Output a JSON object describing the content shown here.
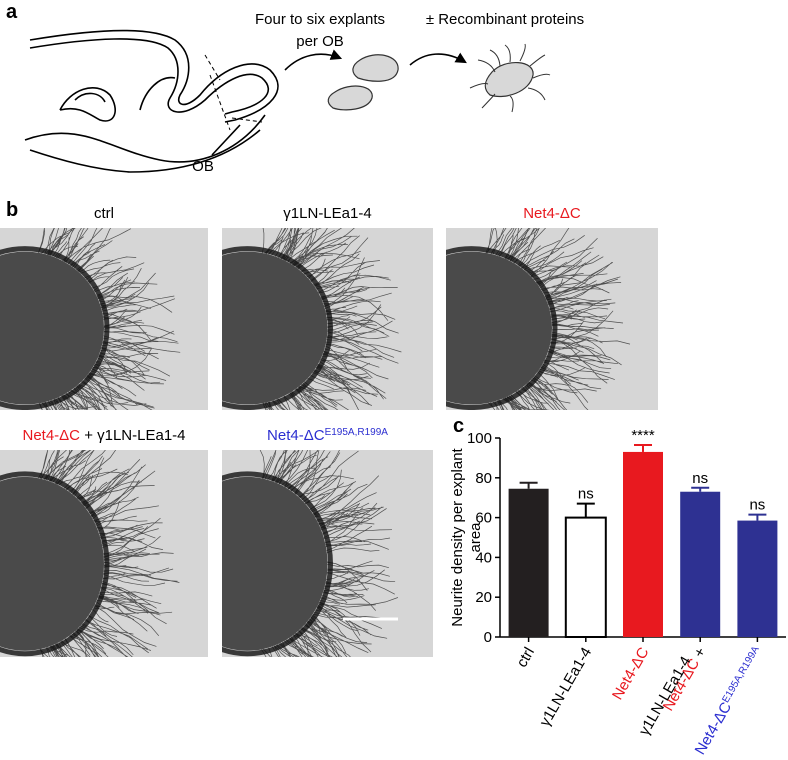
{
  "panel_labels": [
    "a",
    "b",
    "c"
  ],
  "diagram": {
    "step1": [
      "Four to six explants",
      "per OB"
    ],
    "step2": "± Recombinant proteins",
    "ob": "OB"
  },
  "images": [
    {
      "title": [
        {
          "text": "ctrl",
          "color": "#000000"
        }
      ]
    },
    {
      "title": [
        {
          "text": "γ1LN-LEa1-4",
          "color": "#000000"
        }
      ]
    },
    {
      "title": [
        {
          "text": "Net4-ΔC",
          "color": "#e8191f"
        }
      ]
    },
    {
      "title": [
        {
          "text": "Net4-ΔC",
          "color": "#e8191f"
        },
        {
          "text": " + γ1LN-LEa1-4",
          "color": "#000000"
        }
      ]
    },
    {
      "title": [
        {
          "text": "Net4-ΔC",
          "color": "#2b2ed0"
        },
        {
          "text": "E195A,R199A",
          "color": "#2b2ed0",
          "sup": true
        }
      ]
    }
  ],
  "chart_data": {
    "type": "bar",
    "ylabel": [
      "Neurite density per explant",
      "area"
    ],
    "categories": [
      [
        [
          {
            "text": "ctrl",
            "color": "#000000"
          }
        ]
      ],
      [
        [
          {
            "text": "γ1LN-LEa1-4",
            "color": "#000000"
          }
        ]
      ],
      [
        [
          {
            "text": "Net4-ΔC",
            "color": "#e8191f"
          }
        ]
      ],
      [
        [
          {
            "text": "Net4-ΔC",
            "color": "#e8191f"
          },
          {
            "text": " +",
            "color": "#000000"
          }
        ],
        [
          {
            "text": "γ1LN-LEa1-4",
            "color": "#000000"
          }
        ]
      ],
      [
        [
          {
            "text": "Net4-ΔC",
            "color": "#2b2ed0"
          },
          {
            "text": "E195A,R199A",
            "color": "#2b2ed0",
            "sup": true
          }
        ]
      ]
    ],
    "values": [
      74.5,
      60,
      93,
      73,
      58.5
    ],
    "errors": [
      3,
      7,
      3.5,
      2,
      3
    ],
    "colors": [
      "#231f20",
      "#ffffff",
      "#e8191f",
      "#2e3192",
      "#2e3192"
    ],
    "annotations": [
      null,
      "ns",
      "****",
      "ns",
      "ns"
    ],
    "ylim": [
      0,
      100
    ],
    "yticks": [
      0,
      20,
      40,
      60,
      80,
      100
    ]
  }
}
